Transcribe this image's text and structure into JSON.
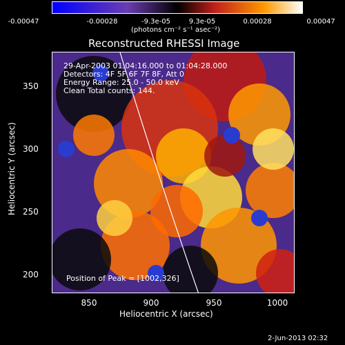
{
  "header": {
    "colorbar_ticks": [
      "-0.00047",
      "-0.00028",
      "-9.3e-05",
      "9.3e-05",
      "0.00028",
      "0.00047"
    ],
    "colorbar_units": "(photons cm⁻² s⁻¹ asec⁻²)",
    "title": "Reconstructed RHESSI Image"
  },
  "image_info": {
    "time": "29-Apr-2003 01:04:16.000 to 01:04:28.000",
    "detectors": "Detectors: 4F 5F 6F 7F 8F, Att 0",
    "energy": "Energy Range: 25.0 - 50.0 keV",
    "method": "Clean    Total counts: 144.",
    "peak": "Position of Peak = [1002,326]"
  },
  "axes": {
    "xlabel": "Heliocentric X (arcsec)",
    "ylabel": "Heliocentric Y (arcsec)",
    "xticks": [
      "850",
      "900",
      "950",
      "1000"
    ],
    "yticks": [
      "350",
      "300",
      "250",
      "200"
    ]
  },
  "footer": "2-Jun-2013 02:32",
  "colors": {
    "cb_low": "#0000ff",
    "cb_mid_low": "#6b3db0",
    "cb_mid": "#000000",
    "cb_mid_high": "#c0201a",
    "cb_high": "#ff9a00",
    "cb_top": "#ffffff"
  }
}
